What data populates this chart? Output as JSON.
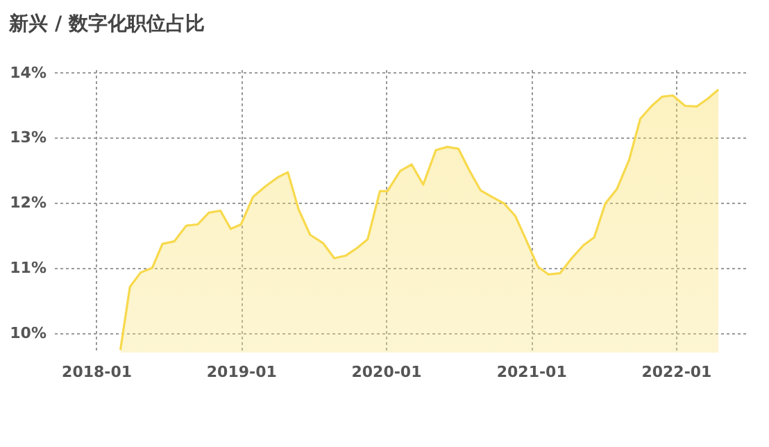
{
  "chart_data": {
    "type": "area",
    "title": "新兴 / 数字化职位占比",
    "x": [
      "2018-03-03",
      "2018-03-27",
      "2018-04-23",
      "2018-05-22",
      "2018-06-17",
      "2018-07-17",
      "2018-08-16",
      "2018-09-14",
      "2018-10-12",
      "2018-11-10",
      "2018-12-06",
      "2019-01-01",
      "2019-01-31",
      "2019-03-03",
      "2019-04-03",
      "2019-04-29",
      "2019-05-26",
      "2019-06-24",
      "2019-07-27",
      "2019-08-24",
      "2019-09-22",
      "2019-10-21",
      "2019-11-16",
      "2019-12-17",
      "2020-01-05",
      "2020-02-06",
      "2020-03-06",
      "2020-04-04",
      "2020-05-06",
      "2020-06-04",
      "2020-07-02",
      "2020-07-30",
      "2020-08-27",
      "2020-09-25",
      "2020-10-25",
      "2020-11-22",
      "2020-12-18",
      "2021-01-18",
      "2021-02-14",
      "2021-03-15",
      "2021-04-12",
      "2021-05-13",
      "2021-06-09",
      "2021-07-07",
      "2021-08-05",
      "2021-09-05",
      "2021-10-03",
      "2021-11-01",
      "2021-11-27",
      "2021-12-24",
      "2022-01-24",
      "2022-02-22",
      "2022-03-22",
      "2022-04-18"
    ],
    "series": [
      {
        "color": "#f7d94c",
        "values": [
          9.74,
          10.71,
          10.93,
          11.0,
          11.37,
          11.41,
          11.65,
          11.67,
          11.85,
          11.88,
          11.6,
          11.67,
          12.09,
          12.25,
          12.39,
          12.47,
          11.9,
          11.51,
          11.38,
          11.15,
          11.19,
          11.31,
          11.44,
          12.18,
          12.18,
          12.49,
          12.59,
          12.28,
          12.81,
          12.86,
          12.83,
          12.49,
          12.19,
          12.09,
          11.99,
          11.8,
          11.45,
          11.02,
          10.9,
          10.92,
          11.14,
          11.35,
          11.47,
          11.99,
          12.21,
          12.66,
          13.29,
          13.49,
          13.63,
          13.65,
          13.49,
          13.48,
          13.6,
          13.74
        ]
      }
    ],
    "xlim": [
      "2017-09-17",
      "2022-07-02"
    ],
    "xticks": [
      "2018-01",
      "2019-01",
      "2020-01",
      "2021-01",
      "2022-01"
    ],
    "ylim": [
      9.7,
      14.05
    ],
    "yticks": [
      {
        "value": 10,
        "label": "10%"
      },
      {
        "value": 11,
        "label": "11%"
      },
      {
        "value": 12,
        "label": "12%"
      },
      {
        "value": 13,
        "label": "13%"
      },
      {
        "value": 14,
        "label": "14%"
      }
    ],
    "grid": true,
    "line_style": "solid",
    "marker": "none"
  }
}
